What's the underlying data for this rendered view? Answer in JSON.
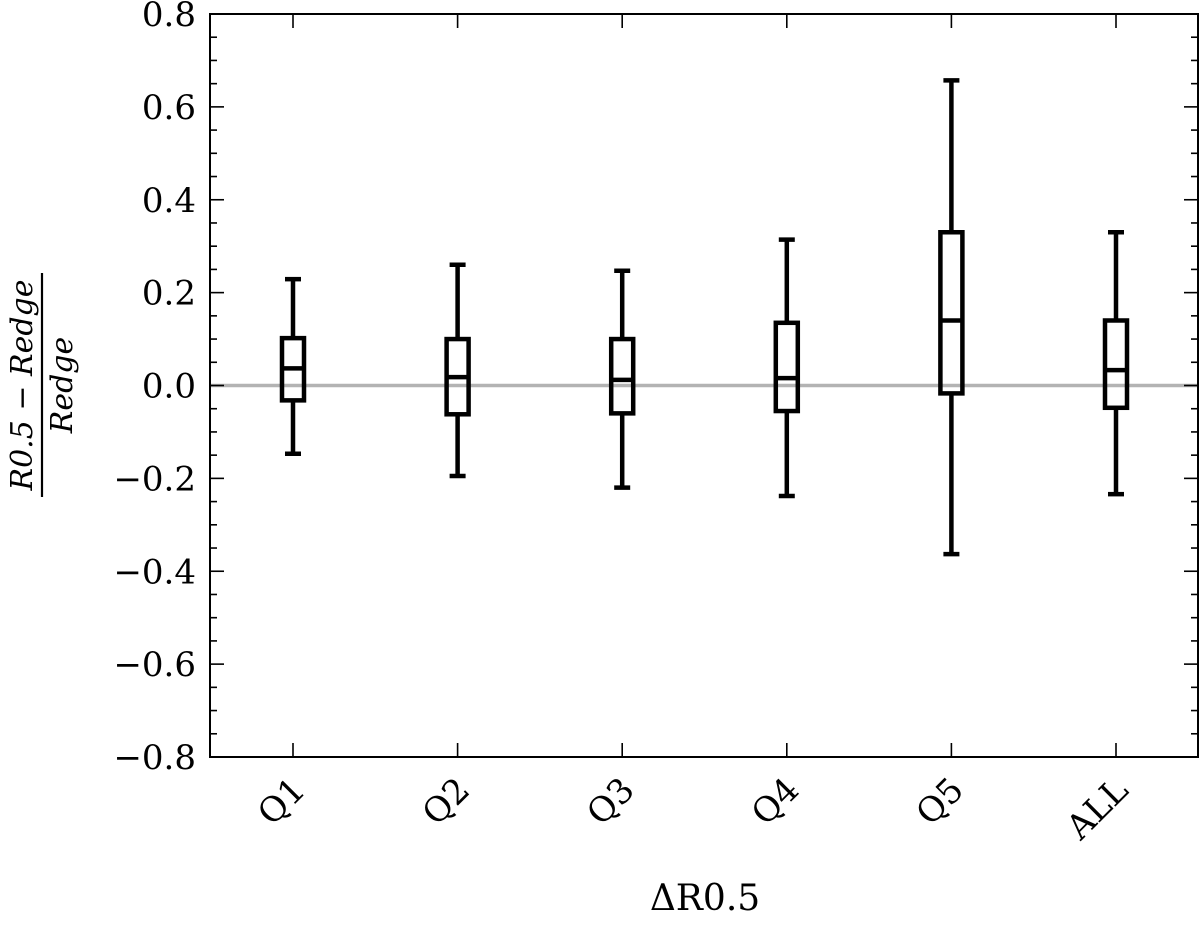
{
  "chart_data": {
    "type": "box",
    "categories": [
      "Q1",
      "Q2",
      "Q3",
      "Q4",
      "Q5",
      "ALL"
    ],
    "boxes": [
      {
        "category": "Q1",
        "whisker_low": -0.147,
        "q1": -0.032,
        "median": 0.037,
        "q3": 0.102,
        "whisker_high": 0.229
      },
      {
        "category": "Q2",
        "whisker_low": -0.195,
        "q1": -0.062,
        "median": 0.018,
        "q3": 0.1,
        "whisker_high": 0.26
      },
      {
        "category": "Q3",
        "whisker_low": -0.22,
        "q1": -0.06,
        "median": 0.012,
        "q3": 0.1,
        "whisker_high": 0.247
      },
      {
        "category": "Q4",
        "whisker_low": -0.238,
        "q1": -0.055,
        "median": 0.016,
        "q3": 0.135,
        "whisker_high": 0.314
      },
      {
        "category": "Q5",
        "whisker_low": -0.363,
        "q1": -0.017,
        "median": 0.14,
        "q3": 0.33,
        "whisker_high": 0.657
      },
      {
        "category": "ALL",
        "whisker_low": -0.234,
        "q1": -0.048,
        "median": 0.033,
        "q3": 0.14,
        "whisker_high": 0.33
      }
    ],
    "xlabel": "ΔR0.5",
    "ylabel": {
      "numerator": "R0.5 − Redge",
      "denominator": "Redge"
    },
    "ylim": [
      -0.8,
      0.8
    ],
    "yticks": [
      -0.8,
      -0.6,
      -0.4,
      -0.2,
      0.0,
      0.2,
      0.4,
      0.6,
      0.8
    ],
    "ytick_labels": [
      "−0.8",
      "−0.6",
      "−0.4",
      "−0.2",
      "0.0",
      "0.2",
      "0.4",
      "0.6",
      "0.8"
    ],
    "reference_line": {
      "y": 0.0,
      "color": "#b3b3b3"
    },
    "box_color": "#000000",
    "grid": false,
    "legend": "none"
  }
}
